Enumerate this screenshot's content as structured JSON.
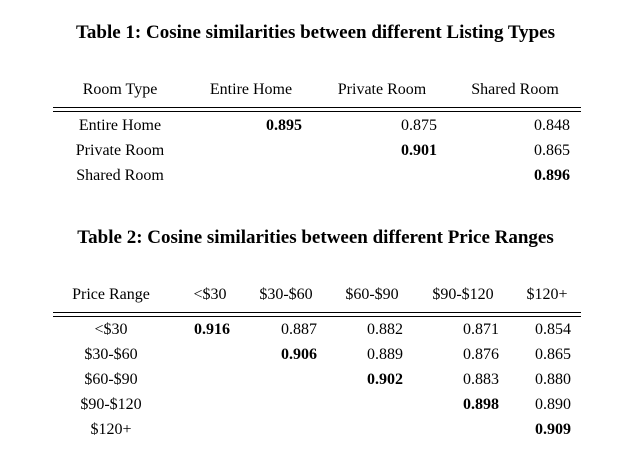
{
  "table1": {
    "caption": "Table 1: Cosine similarities between different Listing Types",
    "headers": [
      "Room Type",
      "Entire Home",
      "Private Room",
      "Shared Room"
    ],
    "rows": [
      {
        "label": "Entire Home",
        "values": [
          "0.895",
          "0.875",
          "0.848"
        ]
      },
      {
        "label": "Private Room",
        "values": [
          "",
          "0.901",
          "0.865"
        ]
      },
      {
        "label": "Shared Room",
        "values": [
          "",
          "",
          "0.896"
        ]
      }
    ]
  },
  "table2": {
    "caption": "Table 2: Cosine similarities between different Price Ranges",
    "headers": [
      "Price Range",
      "<$30",
      "$30-$60",
      "$60-$90",
      "$90-$120",
      "$120+"
    ],
    "rows": [
      {
        "label": "<$30",
        "values": [
          "0.916",
          "0.887",
          "0.882",
          "0.871",
          "0.854"
        ]
      },
      {
        "label": "$30-$60",
        "values": [
          "",
          "0.906",
          "0.889",
          "0.876",
          "0.865"
        ]
      },
      {
        "label": "$60-$90",
        "values": [
          "",
          "",
          "0.902",
          "0.883",
          "0.880"
        ]
      },
      {
        "label": "$90-$120",
        "values": [
          "",
          "",
          "",
          "0.898",
          "0.890"
        ]
      },
      {
        "label": "$120+",
        "values": [
          "",
          "",
          "",
          "",
          "0.909"
        ]
      }
    ]
  }
}
